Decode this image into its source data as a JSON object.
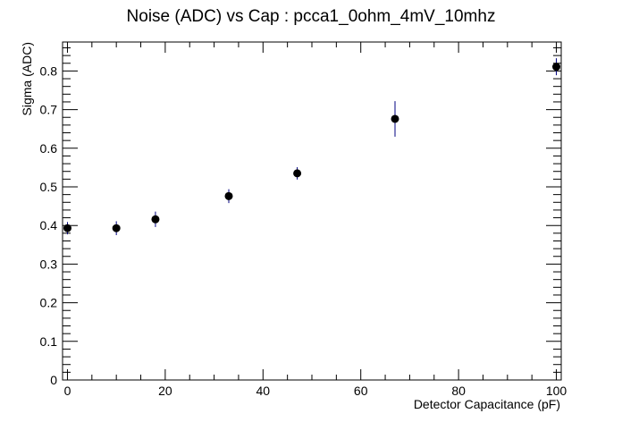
{
  "chart_data": {
    "type": "scatter",
    "title": "Noise (ADC) vs Cap : pcca1_0ohm_4mV_10mhz",
    "xlabel": "Detector Capacitance (pF)",
    "ylabel": "Sigma (ADC)",
    "xlim": [
      -1,
      101
    ],
    "ylim": [
      0,
      0.875
    ],
    "x_ticks": [
      0,
      20,
      40,
      60,
      80,
      100
    ],
    "x_tick_labels": [
      "0",
      "20",
      "40",
      "60",
      "80",
      "100"
    ],
    "y_ticks": [
      0,
      0.1,
      0.2,
      0.3,
      0.4,
      0.5,
      0.6,
      0.7,
      0.8
    ],
    "y_tick_labels": [
      "0",
      "0.1",
      "0.2",
      "0.3",
      "0.4",
      "0.5",
      "0.6",
      "0.7",
      "0.8"
    ],
    "grid": false,
    "points": [
      {
        "x": 0,
        "y": 0.393,
        "err": 0.016
      },
      {
        "x": 10,
        "y": 0.393,
        "err": 0.018
      },
      {
        "x": 18,
        "y": 0.416,
        "err": 0.02
      },
      {
        "x": 33,
        "y": 0.476,
        "err": 0.018
      },
      {
        "x": 47,
        "y": 0.535,
        "err": 0.016
      },
      {
        "x": 67,
        "y": 0.676,
        "err": 0.046
      },
      {
        "x": 100,
        "y": 0.811,
        "err": 0.022
      }
    ],
    "marker_color": "#000000",
    "errorbar_color": "#000080"
  }
}
